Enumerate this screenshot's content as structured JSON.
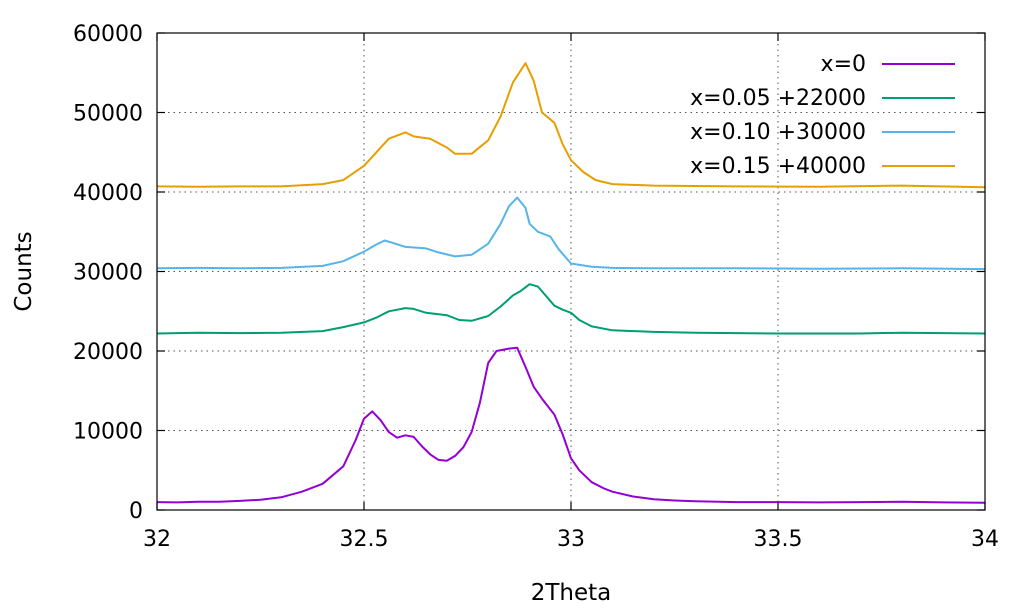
{
  "chart_data": {
    "type": "line",
    "xlabel": "2Theta",
    "ylabel": "Counts",
    "xlim": [
      32,
      34
    ],
    "ylim": [
      0,
      60000
    ],
    "x_ticks": [
      32,
      32.5,
      33,
      33.5,
      34
    ],
    "x_tick_labels": [
      "32",
      "32.5",
      "33",
      "33.5",
      "34"
    ],
    "y_ticks": [
      0,
      10000,
      20000,
      30000,
      40000,
      50000,
      60000
    ],
    "y_tick_labels": [
      "0",
      "10000",
      "20000",
      "30000",
      "40000",
      "50000",
      "60000"
    ],
    "grid": true,
    "legend_position": "top-right",
    "series": [
      {
        "name": "x=0",
        "color": "#9400d3",
        "points": [
          [
            32.0,
            1000
          ],
          [
            32.05,
            950
          ],
          [
            32.1,
            1050
          ],
          [
            32.15,
            1050
          ],
          [
            32.2,
            1150
          ],
          [
            32.25,
            1300
          ],
          [
            32.3,
            1600
          ],
          [
            32.35,
            2300
          ],
          [
            32.4,
            3300
          ],
          [
            32.45,
            5500
          ],
          [
            32.48,
            8800
          ],
          [
            32.5,
            11500
          ],
          [
            32.52,
            12400
          ],
          [
            32.54,
            11300
          ],
          [
            32.56,
            9800
          ],
          [
            32.58,
            9100
          ],
          [
            32.6,
            9400
          ],
          [
            32.62,
            9200
          ],
          [
            32.64,
            8000
          ],
          [
            32.66,
            7000
          ],
          [
            32.68,
            6300
          ],
          [
            32.7,
            6200
          ],
          [
            32.72,
            6800
          ],
          [
            32.74,
            7900
          ],
          [
            32.76,
            9800
          ],
          [
            32.78,
            13500
          ],
          [
            32.8,
            18500
          ],
          [
            32.82,
            20000
          ],
          [
            32.85,
            20300
          ],
          [
            32.87,
            20400
          ],
          [
            32.89,
            18000
          ],
          [
            32.91,
            15500
          ],
          [
            32.93,
            14000
          ],
          [
            32.96,
            12000
          ],
          [
            32.98,
            9500
          ],
          [
            33.0,
            6500
          ],
          [
            33.02,
            5000
          ],
          [
            33.05,
            3500
          ],
          [
            33.08,
            2700
          ],
          [
            33.1,
            2300
          ],
          [
            33.15,
            1700
          ],
          [
            33.2,
            1350
          ],
          [
            33.25,
            1200
          ],
          [
            33.3,
            1100
          ],
          [
            33.4,
            1000
          ],
          [
            33.5,
            1000
          ],
          [
            33.6,
            950
          ],
          [
            33.7,
            1000
          ],
          [
            33.8,
            1050
          ],
          [
            33.9,
            950
          ],
          [
            34.0,
            900
          ]
        ]
      },
      {
        "name": "x=0.05 +22000",
        "color": "#009e73",
        "points": [
          [
            32.0,
            22200
          ],
          [
            32.1,
            22300
          ],
          [
            32.2,
            22250
          ],
          [
            32.3,
            22300
          ],
          [
            32.4,
            22500
          ],
          [
            32.45,
            23000
          ],
          [
            32.5,
            23600
          ],
          [
            32.53,
            24200
          ],
          [
            32.56,
            25000
          ],
          [
            32.6,
            25400
          ],
          [
            32.62,
            25300
          ],
          [
            32.65,
            24800
          ],
          [
            32.7,
            24500
          ],
          [
            32.73,
            23900
          ],
          [
            32.76,
            23800
          ],
          [
            32.8,
            24400
          ],
          [
            32.83,
            25600
          ],
          [
            32.86,
            27000
          ],
          [
            32.88,
            27600
          ],
          [
            32.9,
            28400
          ],
          [
            32.92,
            28100
          ],
          [
            32.94,
            26900
          ],
          [
            32.96,
            25700
          ],
          [
            32.98,
            25200
          ],
          [
            33.0,
            24800
          ],
          [
            33.02,
            23900
          ],
          [
            33.05,
            23100
          ],
          [
            33.1,
            22600
          ],
          [
            33.2,
            22400
          ],
          [
            33.3,
            22300
          ],
          [
            33.5,
            22200
          ],
          [
            33.7,
            22200
          ],
          [
            33.8,
            22300
          ],
          [
            34.0,
            22200
          ]
        ]
      },
      {
        "name": "x=0.10 +30000",
        "color": "#56b4e9",
        "points": [
          [
            32.0,
            30400
          ],
          [
            32.1,
            30450
          ],
          [
            32.2,
            30400
          ],
          [
            32.3,
            30450
          ],
          [
            32.4,
            30700
          ],
          [
            32.45,
            31300
          ],
          [
            32.5,
            32500
          ],
          [
            32.53,
            33400
          ],
          [
            32.55,
            33900
          ],
          [
            32.57,
            33600
          ],
          [
            32.6,
            33100
          ],
          [
            32.65,
            32900
          ],
          [
            32.68,
            32400
          ],
          [
            32.72,
            31900
          ],
          [
            32.76,
            32100
          ],
          [
            32.8,
            33500
          ],
          [
            32.83,
            36000
          ],
          [
            32.85,
            38200
          ],
          [
            32.87,
            39300
          ],
          [
            32.89,
            38000
          ],
          [
            32.9,
            36000
          ],
          [
            32.92,
            35000
          ],
          [
            32.95,
            34400
          ],
          [
            32.97,
            32800
          ],
          [
            33.0,
            31000
          ],
          [
            33.05,
            30600
          ],
          [
            33.1,
            30450
          ],
          [
            33.2,
            30400
          ],
          [
            33.4,
            30400
          ],
          [
            33.6,
            30350
          ],
          [
            33.8,
            30400
          ],
          [
            34.0,
            30300
          ]
        ]
      },
      {
        "name": "x=0.15 +40000",
        "color": "#e69f00",
        "points": [
          [
            32.0,
            40700
          ],
          [
            32.1,
            40650
          ],
          [
            32.2,
            40700
          ],
          [
            32.3,
            40700
          ],
          [
            32.4,
            41000
          ],
          [
            32.45,
            41500
          ],
          [
            32.5,
            43300
          ],
          [
            32.53,
            45000
          ],
          [
            32.56,
            46700
          ],
          [
            32.6,
            47500
          ],
          [
            32.62,
            47000
          ],
          [
            32.66,
            46700
          ],
          [
            32.7,
            45600
          ],
          [
            32.72,
            44800
          ],
          [
            32.76,
            44800
          ],
          [
            32.8,
            46500
          ],
          [
            32.83,
            49500
          ],
          [
            32.86,
            53800
          ],
          [
            32.89,
            56200
          ],
          [
            32.91,
            54000
          ],
          [
            32.93,
            50000
          ],
          [
            32.96,
            48700
          ],
          [
            32.98,
            46000
          ],
          [
            33.0,
            44000
          ],
          [
            33.03,
            42500
          ],
          [
            33.06,
            41500
          ],
          [
            33.1,
            41000
          ],
          [
            33.2,
            40800
          ],
          [
            33.4,
            40700
          ],
          [
            33.6,
            40650
          ],
          [
            33.8,
            40800
          ],
          [
            34.0,
            40600
          ]
        ]
      }
    ]
  }
}
